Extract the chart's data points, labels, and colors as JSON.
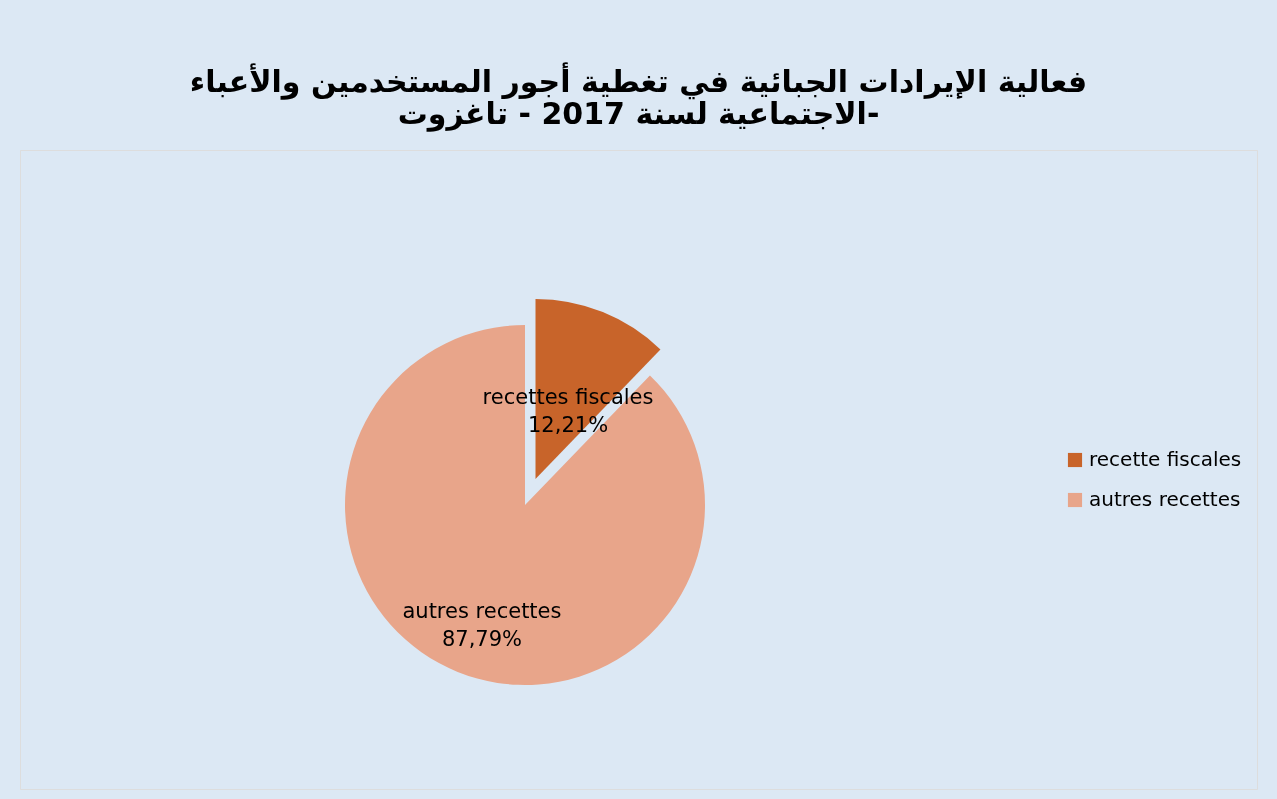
{
  "chart_data": {
    "type": "pie",
    "title": [
      "فعالية الإيرادات الجبائية في تغطية أجور المستخدمين والأعباء",
      "الاجتماعية لسنة 2017 - تاغزوت-"
    ],
    "categories": [
      "recette fiscales",
      "autres recettes"
    ],
    "values": [
      12.21,
      87.79
    ],
    "colors": [
      "#c8642a",
      "#e8a58a"
    ],
    "value_labels": [
      "recettes fiscales\n12,21%",
      "autres recettes\n87,79%"
    ],
    "legend": "right"
  }
}
